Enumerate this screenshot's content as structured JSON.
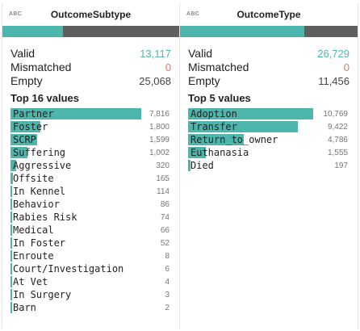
{
  "columns": [
    {
      "type_label": "ABC",
      "name": "OutcomeSubtype",
      "quality": {
        "valid_fraction": 0.343,
        "mismatched_fraction": 0,
        "empty_fraction": 0.657
      },
      "stats": {
        "valid_label": "Valid",
        "valid": "13,117",
        "mismatched_label": "Mismatched",
        "mismatched": "0",
        "empty_label": "Empty",
        "empty": "25,068"
      },
      "top_title": "Top 16 values",
      "values": [
        {
          "label": "Partner",
          "count": "7,816",
          "n": 7816
        },
        {
          "label": "Foster",
          "count": "1,800",
          "n": 1800
        },
        {
          "label": "SCRP",
          "count": "1,599",
          "n": 1599
        },
        {
          "label": "Suffering",
          "count": "1,002",
          "n": 1002
        },
        {
          "label": "Aggressive",
          "count": "320",
          "n": 320
        },
        {
          "label": "Offsite",
          "count": "165",
          "n": 165
        },
        {
          "label": "In Kennel",
          "count": "114",
          "n": 114
        },
        {
          "label": "Behavior",
          "count": "86",
          "n": 86
        },
        {
          "label": "Rabies Risk",
          "count": "74",
          "n": 74
        },
        {
          "label": "Medical",
          "count": "66",
          "n": 66
        },
        {
          "label": "In Foster",
          "count": "52",
          "n": 52
        },
        {
          "label": "Enroute",
          "count": "8",
          "n": 8
        },
        {
          "label": "Court/Investigation",
          "count": "6",
          "n": 6
        },
        {
          "label": "At Vet",
          "count": "4",
          "n": 4
        },
        {
          "label": "In Surgery",
          "count": "3",
          "n": 3
        },
        {
          "label": "Barn",
          "count": "2",
          "n": 2
        }
      ]
    },
    {
      "type_label": "ABC",
      "name": "OutcomeType",
      "quality": {
        "valid_fraction": 0.7,
        "mismatched_fraction": 0,
        "empty_fraction": 0.3
      },
      "stats": {
        "valid_label": "Valid",
        "valid": "26,729",
        "mismatched_label": "Mismatched",
        "mismatched": "0",
        "empty_label": "Empty",
        "empty": "11,456"
      },
      "top_title": "Top 5 values",
      "values": [
        {
          "label": "Adoption",
          "count": "10,769",
          "n": 10769
        },
        {
          "label": "Transfer",
          "count": "9,422",
          "n": 9422
        },
        {
          "label": "Return_to_owner",
          "count": "4,786",
          "n": 4786
        },
        {
          "label": "Euthanasia",
          "count": "1,555",
          "n": 1555
        },
        {
          "label": "Died",
          "count": "197",
          "n": 197
        }
      ]
    }
  ],
  "colors": {
    "bar": "#4db6ac",
    "empty": "#5f5f5f",
    "valid_text": "#4db6ac",
    "mismatch_text": "#e57373"
  }
}
